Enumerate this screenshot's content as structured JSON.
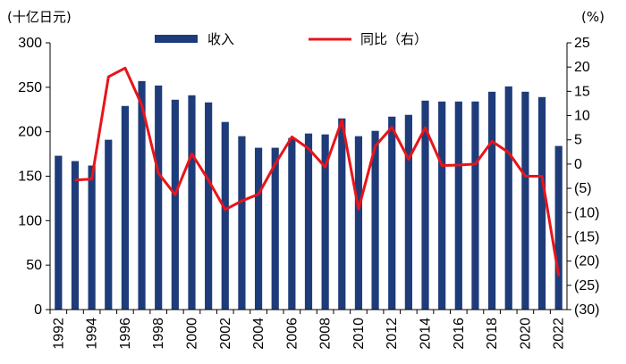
{
  "chart_data": {
    "type": "bar+line",
    "left_axis_label": "(十亿日元)",
    "right_axis_label": "(%)",
    "categories": [
      1992,
      1993,
      1994,
      1995,
      1996,
      1997,
      1998,
      1999,
      2000,
      2001,
      2002,
      2003,
      2004,
      2005,
      2006,
      2007,
      2008,
      2009,
      2010,
      2011,
      2012,
      2013,
      2014,
      2015,
      2016,
      2017,
      2018,
      2019,
      2020,
      2021,
      2022
    ],
    "x_tick_labels": [
      "1992",
      "1994",
      "1996",
      "1998",
      "2000",
      "2002",
      "2004",
      "2006",
      "2008",
      "2010",
      "2012",
      "2014",
      "2016",
      "2018",
      "2020",
      "2022"
    ],
    "series": [
      {
        "name": "收入",
        "type": "bar",
        "axis": "left",
        "color": "#1F3C7A",
        "values": [
          173,
          167,
          162,
          191,
          229,
          257,
          252,
          236,
          241,
          233,
          211,
          195,
          182,
          182,
          193,
          198,
          197,
          215,
          195,
          201,
          217,
          219,
          235,
          234,
          234,
          234,
          245,
          251,
          245,
          239,
          184
        ]
      },
      {
        "name": "同比（右）",
        "type": "line",
        "axis": "right",
        "color": "#E8141B",
        "values": [
          null,
          -3.3,
          -3.1,
          18,
          19.8,
          12.2,
          -1.9,
          -6.3,
          2.1,
          -3.3,
          -9.4,
          -7.6,
          -6.2,
          0,
          5.6,
          3.2,
          -0.6,
          9,
          -9.3,
          3.7,
          7.6,
          1,
          7.5,
          -0.3,
          -0.2,
          0,
          4.7,
          2.4,
          -2.5,
          -2.5,
          -23
        ]
      }
    ],
    "y_left": {
      "min": 0,
      "max": 300,
      "ticks": [
        "0",
        "50",
        "100",
        "150",
        "200",
        "250",
        "300"
      ]
    },
    "y_right": {
      "min": -30,
      "max": 25,
      "ticks": [
        "25",
        "20",
        "15",
        "10",
        "5",
        "0",
        "(5)",
        "(10)",
        "(15)",
        "(20)",
        "(25)",
        "(30)"
      ]
    },
    "legend": {
      "position": "top",
      "entries": [
        "收入",
        "同比（右）"
      ]
    },
    "grid": false
  }
}
